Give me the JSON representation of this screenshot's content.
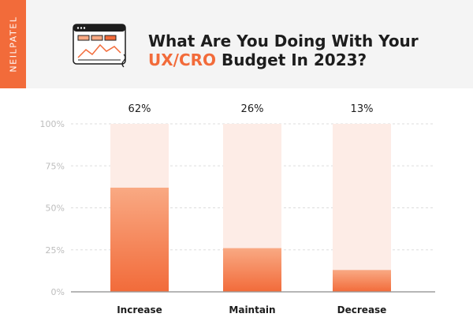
{
  "brand": "NEILPATEL",
  "title": {
    "line1": "What Are You Doing With Your",
    "highlight": "UX/CRO",
    "rest": " Budget In 2023?"
  },
  "colors": {
    "accent": "#f26b3a",
    "bar_top": "#f9a983",
    "bar_bottom": "#f26b3a",
    "track": "#fdece6",
    "axis_text": "#bdbdbd",
    "grid": "#dddddd",
    "text": "#1d1d1d"
  },
  "chart_data": {
    "type": "bar",
    "categories": [
      "Increase",
      "Maintain",
      "Decrease"
    ],
    "values": [
      62,
      26,
      13
    ],
    "value_labels": [
      "62%",
      "26%",
      "13%"
    ],
    "yticks": [
      "0%",
      "25%",
      "50%",
      "75%",
      "100%"
    ],
    "ylim": [
      0,
      100
    ],
    "grid": true
  }
}
